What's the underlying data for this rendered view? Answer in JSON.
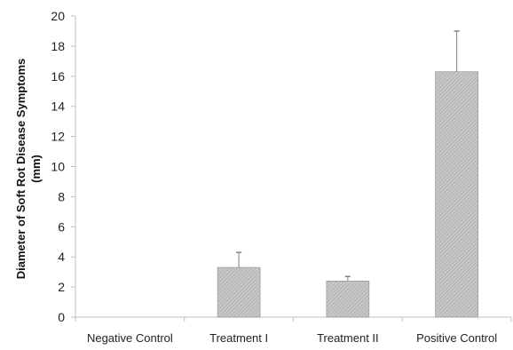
{
  "chart_data": {
    "type": "bar",
    "title": "",
    "xlabel": "",
    "ylabel_lines": [
      "Diameter of Soft Rot Disease Symptoms",
      "(mm)"
    ],
    "categories": [
      "Negative Control",
      "Treatment I",
      "Treatment II",
      "Positive Control"
    ],
    "series": [
      {
        "values": [
          0,
          3.3,
          2.4,
          16.3
        ],
        "error_plus": [
          0,
          1.0,
          0.3,
          2.7
        ]
      }
    ],
    "ylim": [
      0,
      20
    ],
    "yticks": [
      0,
      2,
      4,
      6,
      8,
      10,
      12,
      14,
      16,
      18,
      20
    ],
    "grid": false,
    "legend": "none",
    "colors": {
      "bar_fill": "#c8c8c8",
      "bar_hatch": "#a4a4a4",
      "bar_stroke": "#8c8c8c",
      "error_bar": "#7f7f7f",
      "axis": "#bfbfbf"
    }
  }
}
